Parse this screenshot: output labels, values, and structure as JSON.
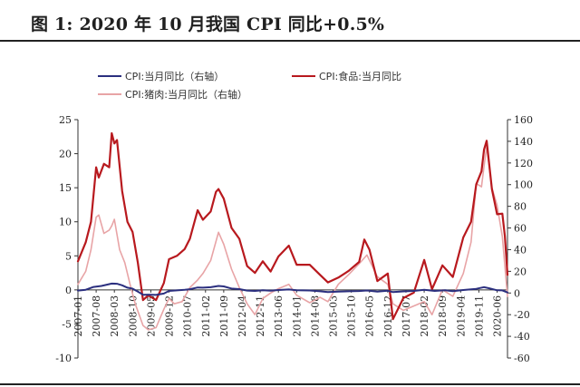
{
  "header": {
    "title": "图 1:  2020 年 10 月我国 CPI 同比+0.5%"
  },
  "chart_data": {
    "type": "line",
    "title": "图 1:  2020 年 10 月我国 CPI 同比+0.5%",
    "xlabel": "",
    "ylabel_left": "",
    "ylabel_right": "",
    "left_axis": {
      "ylim": [
        -10,
        25
      ],
      "ticks": [
        -10,
        -5,
        0,
        5,
        10,
        15,
        20,
        25
      ]
    },
    "right_axis": {
      "ylim": [
        -60,
        160
      ],
      "ticks": [
        -60,
        -40,
        -20,
        0,
        20,
        40,
        60,
        80,
        100,
        120,
        140,
        160
      ]
    },
    "x_tick_labels": [
      "2007-01",
      "2007-08",
      "2008-03",
      "2008-10",
      "2009-05",
      "2009-12",
      "2010-07",
      "2011-02",
      "2011-09",
      "2012-04",
      "2012-11",
      "2013-06",
      "2014-01",
      "2014-08",
      "2015-03",
      "2015-10",
      "2016-05",
      "2016-12",
      "2017-07",
      "2018-02",
      "2018-09",
      "2019-04",
      "2019-11",
      "2020-06"
    ],
    "grid": false,
    "legend": "top",
    "series": [
      {
        "name": "CPI:当月同比（右轴）",
        "axis": "right",
        "color": "#2b2f7f",
        "points": [
          [
            "2007-01",
            2.2
          ],
          [
            "2007-04",
            3.0
          ],
          [
            "2007-07",
            5.6
          ],
          [
            "2007-10",
            6.5
          ],
          [
            "2008-02",
            8.7
          ],
          [
            "2008-04",
            8.5
          ],
          [
            "2008-06",
            7.1
          ],
          [
            "2008-08",
            4.9
          ],
          [
            "2008-10",
            4.0
          ],
          [
            "2008-12",
            1.2
          ],
          [
            "2009-02",
            -1.6
          ],
          [
            "2009-04",
            -1.5
          ],
          [
            "2009-07",
            -1.8
          ],
          [
            "2009-10",
            -0.5
          ],
          [
            "2009-12",
            1.9
          ],
          [
            "2010-03",
            2.4
          ],
          [
            "2010-06",
            2.9
          ],
          [
            "2010-08",
            3.5
          ],
          [
            "2010-11",
            5.1
          ],
          [
            "2011-01",
            4.9
          ],
          [
            "2011-04",
            5.3
          ],
          [
            "2011-07",
            6.5
          ],
          [
            "2011-09",
            6.1
          ],
          [
            "2011-12",
            4.1
          ],
          [
            "2012-03",
            3.6
          ],
          [
            "2012-06",
            2.2
          ],
          [
            "2012-09",
            1.9
          ],
          [
            "2012-12",
            2.5
          ],
          [
            "2013-03",
            2.1
          ],
          [
            "2013-06",
            2.7
          ],
          [
            "2013-10",
            3.2
          ],
          [
            "2014-01",
            2.5
          ],
          [
            "2014-06",
            2.3
          ],
          [
            "2014-10",
            1.6
          ],
          [
            "2015-01",
            0.8
          ],
          [
            "2015-05",
            1.2
          ],
          [
            "2015-09",
            1.6
          ],
          [
            "2016-01",
            1.8
          ],
          [
            "2016-04",
            2.3
          ],
          [
            "2016-08",
            1.3
          ],
          [
            "2016-12",
            2.1
          ],
          [
            "2017-02",
            0.8
          ],
          [
            "2017-06",
            1.5
          ],
          [
            "2017-10",
            1.9
          ],
          [
            "2018-02",
            2.9
          ],
          [
            "2018-06",
            1.9
          ],
          [
            "2018-10",
            2.5
          ],
          [
            "2019-01",
            1.7
          ],
          [
            "2019-05",
            2.7
          ],
          [
            "2019-10",
            3.8
          ],
          [
            "2020-01",
            5.4
          ],
          [
            "2020-03",
            4.3
          ],
          [
            "2020-06",
            2.5
          ],
          [
            "2020-08",
            2.4
          ],
          [
            "2020-10",
            0.5
          ]
        ]
      },
      {
        "name": "CPI:食品:当月同比",
        "axis": "left",
        "color": "#b8191e",
        "points": [
          [
            "2007-01",
            4.2
          ],
          [
            "2007-04",
            7.0
          ],
          [
            "2007-06",
            10.0
          ],
          [
            "2007-08",
            18.0
          ],
          [
            "2007-09",
            16.5
          ],
          [
            "2007-11",
            18.5
          ],
          [
            "2008-01",
            18.0
          ],
          [
            "2008-02",
            23.0
          ],
          [
            "2008-03",
            21.5
          ],
          [
            "2008-04",
            22.0
          ],
          [
            "2008-06",
            14.5
          ],
          [
            "2008-08",
            10.0
          ],
          [
            "2008-10",
            8.5
          ],
          [
            "2008-12",
            4.0
          ],
          [
            "2009-02",
            -1.5
          ],
          [
            "2009-04",
            -0.8
          ],
          [
            "2009-07",
            -1.5
          ],
          [
            "2009-10",
            1.0
          ],
          [
            "2009-12",
            4.5
          ],
          [
            "2010-03",
            5.0
          ],
          [
            "2010-06",
            6.0
          ],
          [
            "2010-08",
            7.5
          ],
          [
            "2010-11",
            11.7
          ],
          [
            "2011-01",
            10.3
          ],
          [
            "2011-04",
            11.5
          ],
          [
            "2011-06",
            14.4
          ],
          [
            "2011-07",
            14.8
          ],
          [
            "2011-09",
            13.4
          ],
          [
            "2011-12",
            9.1
          ],
          [
            "2012-03",
            7.5
          ],
          [
            "2012-06",
            3.5
          ],
          [
            "2012-09",
            2.5
          ],
          [
            "2012-12",
            4.2
          ],
          [
            "2013-03",
            2.7
          ],
          [
            "2013-06",
            4.9
          ],
          [
            "2013-10",
            6.5
          ],
          [
            "2014-01",
            3.7
          ],
          [
            "2014-06",
            3.7
          ],
          [
            "2014-10",
            2.2
          ],
          [
            "2015-01",
            1.1
          ],
          [
            "2015-05",
            1.8
          ],
          [
            "2015-09",
            2.8
          ],
          [
            "2016-01",
            4.1
          ],
          [
            "2016-03",
            7.4
          ],
          [
            "2016-05",
            5.9
          ],
          [
            "2016-08",
            1.3
          ],
          [
            "2016-12",
            2.4
          ],
          [
            "2017-02",
            -4.3
          ],
          [
            "2017-06",
            -1.2
          ],
          [
            "2017-10",
            -0.4
          ],
          [
            "2018-02",
            4.4
          ],
          [
            "2018-05",
            0.1
          ],
          [
            "2018-09",
            3.6
          ],
          [
            "2019-01",
            1.9
          ],
          [
            "2019-05",
            7.7
          ],
          [
            "2019-08",
            10.0
          ],
          [
            "2019-10",
            15.5
          ],
          [
            "2019-12",
            17.4
          ],
          [
            "2020-01",
            20.6
          ],
          [
            "2020-02",
            21.9
          ],
          [
            "2020-04",
            14.8
          ],
          [
            "2020-06",
            11.1
          ],
          [
            "2020-08",
            11.2
          ],
          [
            "2020-09",
            7.9
          ],
          [
            "2020-10",
            2.2
          ]
        ]
      },
      {
        "name": "CPI:猪肉:当月同比（右轴）",
        "axis": "right",
        "color": "#e8a4a6",
        "points": [
          [
            "2007-01",
            8.0
          ],
          [
            "2007-04",
            20.0
          ],
          [
            "2007-06",
            40.0
          ],
          [
            "2007-08",
            70.0
          ],
          [
            "2007-09",
            72.0
          ],
          [
            "2007-11",
            55.0
          ],
          [
            "2008-01",
            58.0
          ],
          [
            "2008-02",
            62.0
          ],
          [
            "2008-03",
            68.0
          ],
          [
            "2008-05",
            40.0
          ],
          [
            "2008-07",
            28.0
          ],
          [
            "2008-09",
            8.0
          ],
          [
            "2008-11",
            -10.0
          ],
          [
            "2009-02",
            -30.0
          ],
          [
            "2009-04",
            -34.0
          ],
          [
            "2009-07",
            -32.0
          ],
          [
            "2009-10",
            -15.0
          ],
          [
            "2009-12",
            -5.0
          ],
          [
            "2010-02",
            -10.0
          ],
          [
            "2010-05",
            -8.0
          ],
          [
            "2010-08",
            5.0
          ],
          [
            "2010-11",
            12.0
          ],
          [
            "2011-01",
            18.0
          ],
          [
            "2011-04",
            30.0
          ],
          [
            "2011-07",
            56.0
          ],
          [
            "2011-09",
            45.0
          ],
          [
            "2011-12",
            22.0
          ],
          [
            "2012-03",
            5.0
          ],
          [
            "2012-06",
            -10.0
          ],
          [
            "2012-09",
            -20.0
          ],
          [
            "2012-12",
            -5.0
          ],
          [
            "2013-03",
            0.0
          ],
          [
            "2013-06",
            4.0
          ],
          [
            "2013-10",
            8.0
          ],
          [
            "2014-01",
            -2.0
          ],
          [
            "2014-06",
            -9.0
          ],
          [
            "2014-10",
            -4.0
          ],
          [
            "2015-01",
            -8.0
          ],
          [
            "2015-05",
            8.0
          ],
          [
            "2015-09",
            17.0
          ],
          [
            "2016-01",
            27.0
          ],
          [
            "2016-04",
            35.0
          ],
          [
            "2016-08",
            15.0
          ],
          [
            "2016-12",
            8.0
          ],
          [
            "2017-02",
            -10.0
          ],
          [
            "2017-06",
            -16.0
          ],
          [
            "2017-10",
            -12.0
          ],
          [
            "2018-02",
            -8.0
          ],
          [
            "2018-05",
            -20.0
          ],
          [
            "2018-09",
            3.0
          ],
          [
            "2019-01",
            -3.0
          ],
          [
            "2019-05",
            18.0
          ],
          [
            "2019-08",
            47.0
          ],
          [
            "2019-10",
            101.0
          ],
          [
            "2019-12",
            98.0
          ],
          [
            "2020-01",
            117.0
          ],
          [
            "2020-02",
            135.0
          ],
          [
            "2020-04",
            97.0
          ],
          [
            "2020-06",
            81.0
          ],
          [
            "2020-08",
            52.0
          ],
          [
            "2020-09",
            25.0
          ],
          [
            "2020-10",
            -3.0
          ]
        ]
      }
    ]
  }
}
